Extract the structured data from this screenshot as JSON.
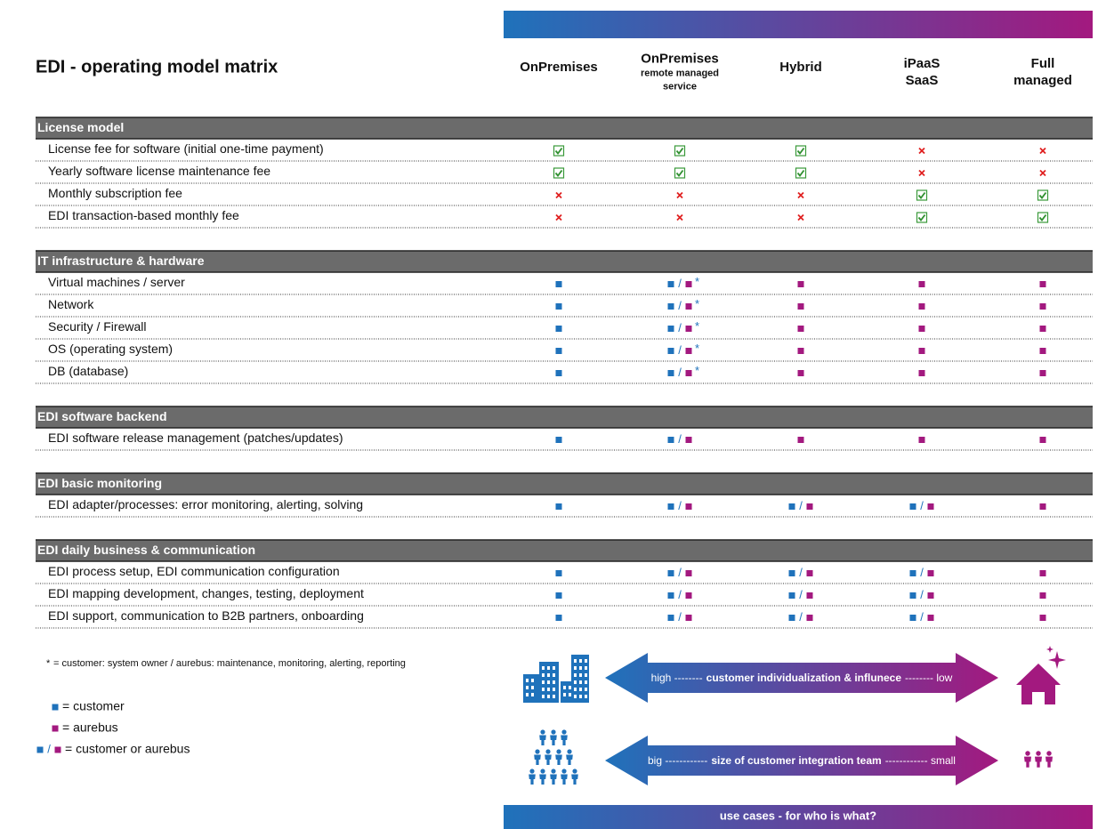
{
  "title": "EDI - operating model matrix",
  "columns": [
    {
      "title": [
        "OnPremises"
      ]
    },
    {
      "title": [
        "OnPremises"
      ],
      "subtitle": [
        "remote managed",
        "service"
      ]
    },
    {
      "title": [
        "Hybrid"
      ]
    },
    {
      "title": [
        "iPaaS",
        "SaaS"
      ]
    },
    {
      "title": [
        "Full",
        "managed"
      ]
    }
  ],
  "sections": [
    {
      "title": "License model",
      "rows": [
        {
          "label": "License fee for software (initial one-time payment)",
          "cells": [
            "check",
            "check",
            "check",
            "cross",
            "cross"
          ]
        },
        {
          "label": "Yearly software license maintenance fee",
          "cells": [
            "check",
            "check",
            "check",
            "cross",
            "cross"
          ]
        },
        {
          "label": "Monthly subscription fee",
          "cells": [
            "cross",
            "cross",
            "cross",
            "check",
            "check"
          ]
        },
        {
          "label": "EDI transaction-based monthly fee",
          "cells": [
            "cross",
            "cross",
            "cross",
            "check",
            "check"
          ]
        }
      ]
    },
    {
      "title": "IT infrastructure & hardware",
      "rows": [
        {
          "label": "Virtual machines / server",
          "cells": [
            "customer",
            "both*",
            "aurebus",
            "aurebus",
            "aurebus"
          ]
        },
        {
          "label": "Network",
          "cells": [
            "customer",
            "both*",
            "aurebus",
            "aurebus",
            "aurebus"
          ]
        },
        {
          "label": "Security / Firewall",
          "cells": [
            "customer",
            "both*",
            "aurebus",
            "aurebus",
            "aurebus"
          ]
        },
        {
          "label": "OS (operating system)",
          "cells": [
            "customer",
            "both*",
            "aurebus",
            "aurebus",
            "aurebus"
          ]
        },
        {
          "label": "DB (database)",
          "cells": [
            "customer",
            "both*",
            "aurebus",
            "aurebus",
            "aurebus"
          ]
        }
      ]
    },
    {
      "title": "EDI software backend",
      "rows": [
        {
          "label": "EDI software release management (patches/updates)",
          "cells": [
            "customer",
            "both",
            "aurebus",
            "aurebus",
            "aurebus"
          ]
        }
      ]
    },
    {
      "title": "EDI basic monitoring",
      "rows": [
        {
          "label": "EDI adapter/processes: error monitoring, alerting, solving",
          "cells": [
            "customer",
            "both",
            "both",
            "both",
            "aurebus"
          ]
        }
      ]
    },
    {
      "title": "EDI daily business & communication",
      "rows": [
        {
          "label": "EDI process setup, EDI communication configuration",
          "cells": [
            "customer",
            "both",
            "both",
            "both",
            "aurebus"
          ]
        },
        {
          "label": "EDI mapping development, changes, testing, deployment",
          "cells": [
            "customer",
            "both",
            "both",
            "both",
            "aurebus"
          ]
        },
        {
          "label": "EDI support, communication to B2B partners, onboarding",
          "cells": [
            "customer",
            "both",
            "both",
            "both",
            "aurebus"
          ]
        }
      ]
    }
  ],
  "footnote": {
    "mark": "*",
    "text": "= customer: system owner / aurebus: maintenance, monitoring, alerting, reporting"
  },
  "legend": [
    {
      "owner": "customer",
      "label": "= customer"
    },
    {
      "owner": "aurebus",
      "label": "= aurebus"
    },
    {
      "owner": "both",
      "separator": "/",
      "label": "= customer or aurebus"
    }
  ],
  "arrows": [
    {
      "left": "high --------",
      "middle": "customer individualization & influnece",
      "right": "-------- low"
    },
    {
      "left": "big ------------",
      "middle": "size of customer integration team",
      "right": "------------ small"
    }
  ],
  "footer": "use cases - for who is what?"
}
